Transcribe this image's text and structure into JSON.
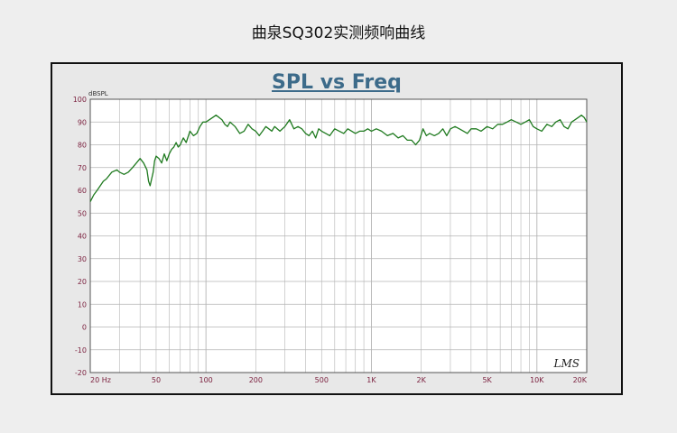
{
  "page": {
    "title": "曲泉SQ302实测频响曲线"
  },
  "chart_data": {
    "type": "line",
    "title": "SPL vs Freq",
    "ylabel": "dBSPL",
    "xlabel": "",
    "x_scale": "log",
    "xlim": [
      20,
      20000
    ],
    "ylim": [
      -20,
      100
    ],
    "y_ticks": [
      -20,
      -10,
      0,
      10,
      20,
      30,
      40,
      50,
      60,
      70,
      80,
      90,
      100
    ],
    "x_ticks": [
      {
        "value": 20,
        "label": "20 Hz"
      },
      {
        "value": 50,
        "label": "50"
      },
      {
        "value": 100,
        "label": "100"
      },
      {
        "value": 200,
        "label": "200"
      },
      {
        "value": 500,
        "label": "500"
      },
      {
        "value": 1000,
        "label": "1K"
      },
      {
        "value": 2000,
        "label": "2K"
      },
      {
        "value": 5000,
        "label": "5K"
      },
      {
        "value": 10000,
        "label": "10K"
      },
      {
        "value": 20000,
        "label": "20K"
      }
    ],
    "grid": true,
    "brand": "LMS",
    "colors": {
      "line": "#1f7a1f",
      "grid": "#b4b4b4",
      "plot_bg": "#ffffff",
      "tick_label": "#7a1f3d",
      "title": "#3d6b8a"
    },
    "series": [
      {
        "name": "",
        "x": [
          20,
          21,
          22,
          23,
          24,
          25,
          27,
          29,
          30,
          32,
          34,
          36,
          38,
          40,
          42,
          44,
          45,
          46,
          48,
          49,
          50,
          52,
          54,
          56,
          58,
          60,
          62,
          64,
          66,
          68,
          70,
          73,
          76,
          80,
          84,
          88,
          92,
          96,
          100,
          105,
          110,
          115,
          120,
          125,
          130,
          135,
          140,
          150,
          160,
          170,
          180,
          190,
          200,
          210,
          220,
          230,
          240,
          250,
          260,
          280,
          300,
          320,
          340,
          360,
          380,
          400,
          420,
          440,
          460,
          480,
          500,
          530,
          560,
          600,
          640,
          680,
          720,
          760,
          800,
          850,
          900,
          950,
          1000,
          1070,
          1150,
          1250,
          1350,
          1450,
          1550,
          1650,
          1750,
          1850,
          1950,
          2050,
          2150,
          2250,
          2400,
          2550,
          2700,
          2850,
          3000,
          3200,
          3400,
          3600,
          3800,
          4000,
          4300,
          4600,
          5000,
          5400,
          5800,
          6200,
          6600,
          7000,
          7500,
          8000,
          8500,
          9000,
          9500,
          10000,
          10700,
          11500,
          12300,
          13000,
          13800,
          14600,
          15400,
          16200,
          17000,
          17800,
          18600,
          19300,
          20000
        ],
        "y": [
          55,
          58,
          60,
          62,
          64,
          65,
          68,
          69,
          68,
          67,
          68,
          70,
          72,
          74,
          72,
          69,
          64,
          62,
          68,
          73,
          75,
          74,
          72,
          76,
          73,
          76,
          78,
          79,
          81,
          79,
          80,
          83,
          81,
          86,
          84,
          85,
          88,
          90,
          90,
          91,
          92,
          93,
          92,
          91,
          89,
          88,
          90,
          88,
          85,
          86,
          89,
          87,
          86,
          84,
          86,
          88,
          87,
          86,
          88,
          86,
          88,
          91,
          87,
          88,
          87,
          85,
          84,
          86,
          83,
          87,
          86,
          85,
          84,
          87,
          86,
          85,
          87,
          86,
          85,
          86,
          86,
          87,
          86,
          87,
          86,
          84,
          85,
          83,
          84,
          82,
          82,
          80,
          82,
          87,
          84,
          85,
          84,
          85,
          87,
          84,
          87,
          88,
          87,
          86,
          85,
          87,
          87,
          86,
          88,
          87,
          89,
          89,
          90,
          91,
          90,
          89,
          90,
          91,
          88,
          87,
          86,
          89,
          88,
          90,
          91,
          88,
          87,
          90,
          91,
          92,
          93,
          92,
          90
        ]
      }
    ]
  }
}
